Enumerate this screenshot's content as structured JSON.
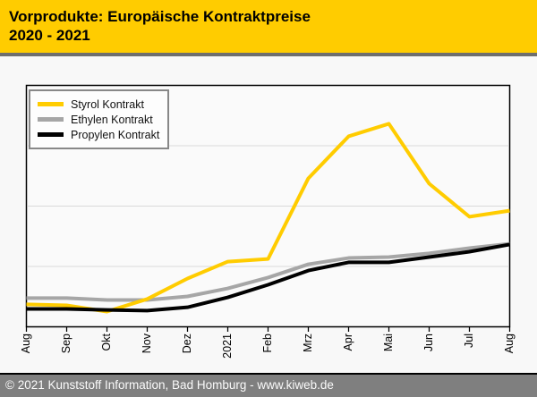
{
  "header": {
    "title_line1": "Vorprodukte: Europäische Kontraktpreise",
    "title_line2": "2020 - 2021",
    "background_color": "#FFCC00",
    "text_color": "#000000"
  },
  "footer": {
    "text": "© 2021 Kunststoff Information, Bad Homburg - www.kiweb.de",
    "background_color": "#7F7F7F",
    "text_color": "#FAFAFA"
  },
  "chart_data": {
    "type": "line",
    "title": "Vorprodukte: Europäische Kontraktpreise 2020 - 2021",
    "xlabel": "",
    "ylabel": "",
    "x_tick_labels": [
      "Aug",
      "Sep",
      "Okt",
      "Nov",
      "Dez",
      "2021",
      "Feb",
      "Mrz",
      "Apr",
      "Mai",
      "Jun",
      "Jul",
      "Aug"
    ],
    "x_tick_label_orientation": "vertical, reading bottom to top",
    "y_axis_note": "no numeric y-axis scale shown; values below are relative level as percent of plot height (0 = bottom frame, 100 = top frame)",
    "grid": "3 light horizontal gridlines at 25%, 50%, 75% of plot height",
    "legend_position": "top-left inside plot, boxed",
    "plot_background": "#FAFAFA",
    "gridline_color": "#D9D9D9",
    "frame_color": "#000000",
    "series_draw_order": [
      "Ethylen Kontrakt",
      "Styrol Kontrakt",
      "Propylen Kontrakt"
    ],
    "series": [
      {
        "name": "Styrol Kontrakt",
        "color": "#FFCC00",
        "values": [
          9.3,
          8.9,
          6.3,
          11.5,
          20.0,
          27.0,
          28.1,
          61.5,
          78.9,
          84.1,
          59.3,
          45.6,
          48.1
        ]
      },
      {
        "name": "Ethylen Kontrakt",
        "color": "#A6A6A6",
        "values": [
          11.9,
          11.9,
          11.1,
          11.1,
          12.6,
          15.9,
          20.4,
          25.9,
          28.5,
          28.9,
          30.4,
          32.6,
          34.4
        ]
      },
      {
        "name": "Propylen Kontrakt",
        "color": "#000000",
        "values": [
          7.4,
          7.4,
          7.0,
          6.7,
          8.1,
          12.2,
          17.4,
          23.3,
          26.7,
          26.7,
          28.9,
          31.1,
          34.1
        ]
      }
    ]
  }
}
